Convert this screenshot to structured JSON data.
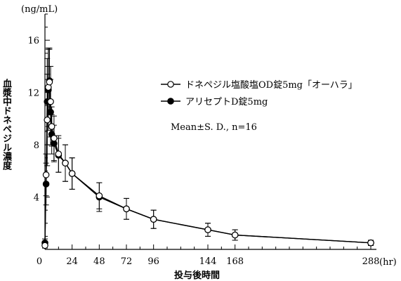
{
  "chart_data": {
    "type": "line",
    "xlabel": "投与後時間",
    "x_unit": "(hr)",
    "ylabel": "血漿中ドネペジル濃度",
    "y_unit": "(ng/mL)",
    "xlim": [
      0,
      288
    ],
    "ylim": [
      0,
      18
    ],
    "x_ticks": [
      0,
      24,
      48,
      72,
      96,
      144,
      168,
      288
    ],
    "y_ticks": [
      0,
      4,
      8,
      12,
      16
    ],
    "annotation": "Mean±S. D., n=16",
    "legend_position": "right",
    "series": [
      {
        "name": "ドネペジル塩酸塩OD錠5mg「オーハラ」",
        "marker": "open-circle",
        "color": "#000000",
        "x": [
          0,
          1,
          2,
          3,
          4,
          5,
          6,
          8,
          12,
          18,
          24,
          48,
          72,
          96,
          144,
          168,
          288
        ],
        "y": [
          0.3,
          5.7,
          9.9,
          12.4,
          12.8,
          11.3,
          9.4,
          8.5,
          7.3,
          6.6,
          5.8,
          4.1,
          3.1,
          2.3,
          1.5,
          1.1,
          0.5
        ],
        "sd": [
          0.2,
          1.6,
          3.5,
          3.0,
          2.5,
          2.7,
          1.5,
          1.7,
          1.4,
          1.4,
          1.2,
          1.0,
          0.8,
          0.7,
          0.5,
          0.4,
          0.2
        ]
      },
      {
        "name": "アリセプトD錠5mg",
        "marker": "filled-circle",
        "color": "#000000",
        "x": [
          0,
          1,
          2,
          3,
          4,
          5,
          6,
          8,
          12,
          18,
          24,
          48,
          72,
          96,
          144,
          168,
          288
        ],
        "y": [
          0.5,
          5.0,
          11.3,
          12.2,
          12.9,
          10.5,
          8.8,
          8.1,
          7.2,
          6.6,
          5.8,
          4.0,
          3.1,
          2.3,
          1.5,
          1.1,
          0.5
        ],
        "sd": [
          0.3,
          1.6,
          3.3,
          3.1,
          2.5,
          2.5,
          1.5,
          1.4,
          1.3,
          1.4,
          1.2,
          1.1,
          0.8,
          0.7,
          0.5,
          0.4,
          0.2
        ]
      }
    ]
  }
}
